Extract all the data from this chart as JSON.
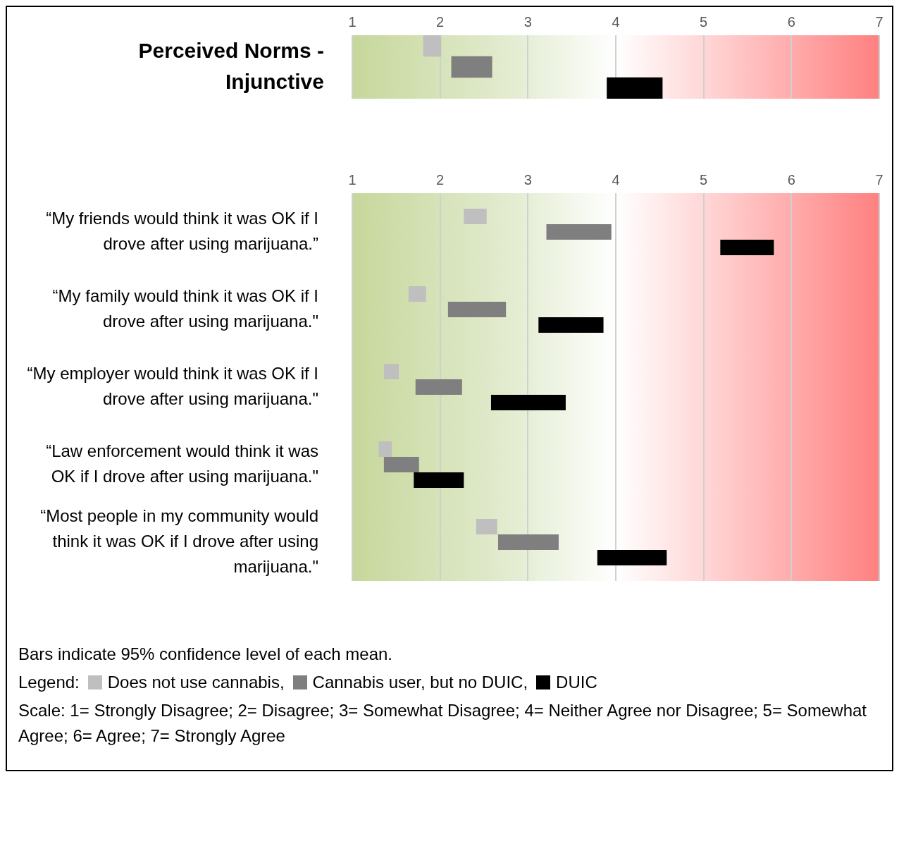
{
  "chart_data": [
    {
      "type": "bar",
      "orientation": "horizontal",
      "title": "Perceived Norms - Injunctive",
      "categories": [
        null
      ],
      "xlim": [
        1,
        7
      ],
      "xticks": [
        1,
        2,
        3,
        4,
        5,
        6,
        7
      ],
      "grid": "x",
      "legend": false,
      "series": [
        {
          "color": "#bfbfbf",
          "base": [
            1.81
          ],
          "values": [
            0.2
          ]
        },
        {
          "color": "#7f7f7f",
          "base": [
            2.13
          ],
          "values": [
            0.46
          ]
        },
        {
          "color": "#000000",
          "base": [
            3.9
          ],
          "values": [
            0.63
          ]
        }
      ]
    },
    {
      "type": "bar",
      "orientation": "horizontal",
      "categories": [
        "“My friends would think it was OK if I drove after using marijuana.”",
        "“My family would think it was OK if I drove after using marijuana.\"",
        "“My employer would think it was OK if I drove after using marijuana.\"",
        "“Law enforcement would think it was OK if I drove after using marijuana.\"",
        "“Most people in my community would think it was OK if I drove after using marijuana.\""
      ],
      "xlim": [
        1,
        7
      ],
      "xticks": [
        1,
        2,
        3,
        4,
        5,
        6,
        7
      ],
      "grid": "x",
      "legend": "bottom",
      "legend_title": "Legend:",
      "series": [
        {
          "name": "Does not use cannabis,",
          "color": "#bfbfbf",
          "base": [
            2.27,
            1.64,
            1.36,
            1.3,
            2.41
          ],
          "values": [
            0.26,
            0.2,
            0.17,
            0.15,
            0.24
          ]
        },
        {
          "name": "Cannabis user, but no DUIC,",
          "color": "#7f7f7f",
          "base": [
            3.21,
            2.09,
            1.72,
            1.36,
            2.66
          ],
          "values": [
            0.74,
            0.66,
            0.53,
            0.4,
            0.69
          ]
        },
        {
          "name": "DUIC",
          "color": "#000000",
          "base": [
            5.19,
            3.12,
            2.58,
            1.7,
            3.79
          ],
          "values": [
            0.61,
            0.74,
            0.85,
            0.57,
            0.79
          ]
        }
      ],
      "annotations": [
        "Bars indicate 95% confidence level of each mean.",
        "Scale: 1= Strongly Disagree; 2= Disagree; 3= Somewhat Disagree; 4= Neither Agree nor Disagree; 5= Somewhat Agree; 6= Agree; 7= Strongly Agree"
      ]
    }
  ]
}
